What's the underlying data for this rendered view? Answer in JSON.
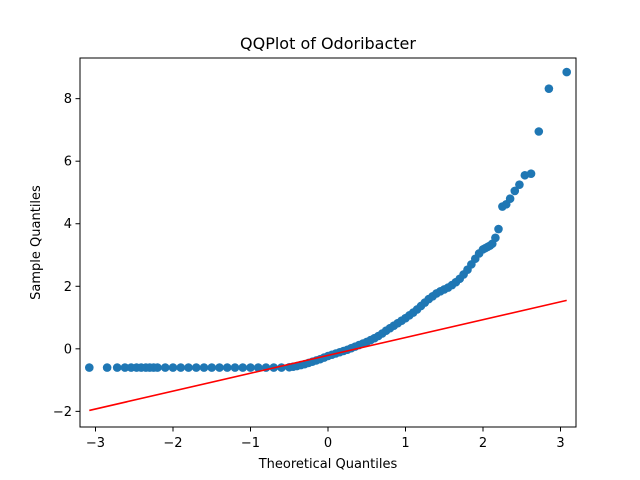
{
  "chart_data": {
    "type": "scatter",
    "title": "QQPlot of Odoribacter",
    "xlabel": "Theoretical Quantiles",
    "ylabel": "Sample Quantiles",
    "xlim": [
      -3.2,
      3.2
    ],
    "ylim": [
      -2.5,
      9.3
    ],
    "xticks": [
      -3,
      -2,
      -1,
      0,
      1,
      2,
      3
    ],
    "xtick_labels": [
      "−3",
      "−2",
      "−1",
      "0",
      "1",
      "2",
      "3"
    ],
    "yticks": [
      -2,
      0,
      2,
      4,
      6,
      8
    ],
    "ytick_labels": [
      "−2",
      "0",
      "2",
      "4",
      "6",
      "8"
    ],
    "grid": false,
    "colors": {
      "points": "#1f77b4",
      "reference_line": "#ff0000"
    },
    "reference_line": {
      "x": [
        -3.08,
        3.08
      ],
      "y": [
        -1.97,
        1.55
      ]
    },
    "series": [
      {
        "x": [
          -3.08,
          -2.85,
          -2.72,
          -2.62,
          -2.54,
          -2.47,
          -2.41,
          -2.35,
          -2.3,
          -2.25,
          -2.2,
          -2.1,
          -2.0,
          -1.9,
          -1.8,
          -1.7,
          -1.6,
          -1.5,
          -1.4,
          -1.3,
          -1.2,
          -1.1,
          -1.0,
          -0.9,
          -0.8,
          -0.7,
          -0.6,
          -0.5,
          -0.45,
          -0.4,
          -0.35,
          -0.3,
          -0.25,
          -0.2,
          -0.15,
          -0.1,
          -0.05,
          0.0,
          0.05,
          0.1,
          0.15,
          0.2,
          0.25,
          0.3,
          0.35,
          0.4,
          0.45,
          0.5,
          0.55,
          0.6,
          0.65,
          0.7,
          0.75,
          0.8,
          0.85,
          0.9,
          0.95,
          1.0,
          1.05,
          1.1,
          1.15,
          1.2,
          1.25,
          1.3,
          1.35,
          1.4,
          1.45,
          1.5,
          1.55,
          1.6,
          1.65,
          1.7,
          1.75,
          1.8,
          1.85,
          1.9,
          1.95,
          2.0,
          2.03,
          2.06,
          2.09,
          2.12,
          2.16,
          2.2,
          2.25,
          2.3,
          2.35,
          2.41,
          2.47,
          2.54,
          2.62,
          2.72,
          2.85,
          3.08
        ],
        "y": [
          -0.6,
          -0.6,
          -0.6,
          -0.6,
          -0.6,
          -0.6,
          -0.6,
          -0.6,
          -0.6,
          -0.6,
          -0.6,
          -0.6,
          -0.6,
          -0.6,
          -0.6,
          -0.6,
          -0.6,
          -0.6,
          -0.6,
          -0.6,
          -0.6,
          -0.6,
          -0.6,
          -0.6,
          -0.6,
          -0.6,
          -0.6,
          -0.59,
          -0.57,
          -0.55,
          -0.52,
          -0.49,
          -0.45,
          -0.41,
          -0.37,
          -0.33,
          -0.28,
          -0.23,
          -0.19,
          -0.15,
          -0.11,
          -0.07,
          -0.03,
          0.02,
          0.07,
          0.12,
          0.17,
          0.22,
          0.28,
          0.34,
          0.41,
          0.49,
          0.58,
          0.66,
          0.74,
          0.82,
          0.9,
          0.98,
          1.07,
          1.16,
          1.26,
          1.37,
          1.48,
          1.59,
          1.68,
          1.77,
          1.84,
          1.9,
          1.96,
          2.04,
          2.13,
          2.24,
          2.38,
          2.53,
          2.7,
          2.88,
          3.05,
          3.18,
          3.22,
          3.26,
          3.3,
          3.36,
          3.55,
          3.83,
          4.55,
          4.62,
          4.8,
          5.05,
          5.25,
          5.55,
          5.6,
          6.95,
          8.32,
          8.85
        ]
      }
    ]
  }
}
